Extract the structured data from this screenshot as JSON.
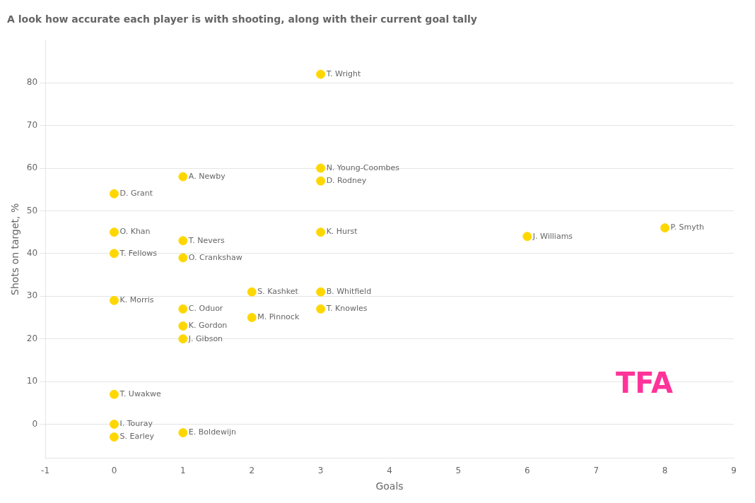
{
  "chart_data": {
    "type": "scatter",
    "subtitle": "A look how accurate each player is with shooting, along with their current goal tally",
    "xlabel": "Goals",
    "ylabel": "Shots on target, %",
    "x": [
      3,
      3,
      3,
      1,
      0,
      0,
      0,
      1,
      1,
      3,
      6,
      8,
      3,
      3,
      2,
      2,
      0,
      1,
      1,
      1,
      0,
      0,
      0,
      1
    ],
    "values": [
      82,
      60,
      57,
      58,
      54,
      45,
      40,
      43,
      39,
      45,
      44,
      46,
      31,
      27,
      31,
      25,
      29,
      27,
      23,
      20,
      7,
      0,
      -3,
      -2
    ],
    "point_labels": [
      "T. Wright",
      "N. Young-Coombes",
      "D. Rodney",
      "A. Newby",
      "D. Grant",
      "O. Khan",
      "T. Fellows",
      "T. Nevers",
      "O. Crankshaw",
      "K. Hurst",
      "J. Williams",
      "P. Smyth",
      "B. Whitfield",
      "T. Knowles",
      "S. Kashket",
      "M. Pinnock",
      "K. Morris",
      "C. Oduor",
      "K. Gordon",
      "J. Gibson",
      "T. Uwakwe",
      "I. Touray",
      "S. Earley",
      "E. Boldewijn"
    ],
    "color": "#FFD700",
    "xlim": [
      -1,
      9
    ],
    "ylim": [
      -8,
      90
    ],
    "xticks": [
      -1,
      0,
      1,
      2,
      3,
      4,
      5,
      6,
      7,
      8,
      9
    ],
    "yticks": [
      0,
      10,
      20,
      30,
      40,
      50,
      60,
      70,
      80
    ],
    "grid": "y",
    "annotations": [
      {
        "text": "TFA",
        "color": "#FF3399"
      }
    ]
  }
}
